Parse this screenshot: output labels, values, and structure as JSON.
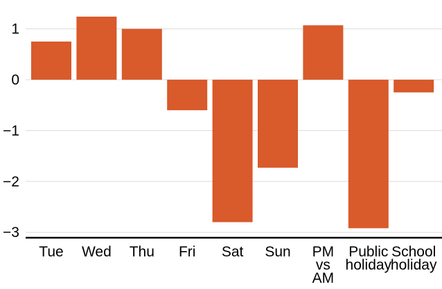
{
  "chart_data": {
    "type": "bar",
    "title": "",
    "xlabel": "",
    "ylabel": "",
    "categories": [
      "Tue",
      "Wed",
      "Thu",
      "Fri",
      "Sat",
      "Sun",
      "PM vs AM",
      "Public holiday",
      "School holiday"
    ],
    "category_lines": [
      [
        "Tue"
      ],
      [
        "Wed"
      ],
      [
        "Thu"
      ],
      [
        "Fri"
      ],
      [
        "Sat"
      ],
      [
        "Sun"
      ],
      [
        "PM",
        "vs",
        "AM"
      ],
      [
        "Public",
        "holiday"
      ],
      [
        "School",
        "holiday"
      ]
    ],
    "values": [
      0.75,
      1.24,
      1.0,
      -0.6,
      -2.8,
      -1.73,
      1.07,
      -2.92,
      -0.25
    ],
    "ylim": [
      -3.1,
      1.35
    ],
    "yticks": [
      1,
      0,
      -1,
      -2,
      -3
    ],
    "ytick_labels": [
      "1",
      "0",
      "−1",
      "−2",
      "−3"
    ],
    "grid": true,
    "colors": {
      "bar": "#d95a2b",
      "grid": "#dcdcdc",
      "axis": "#000000"
    }
  }
}
